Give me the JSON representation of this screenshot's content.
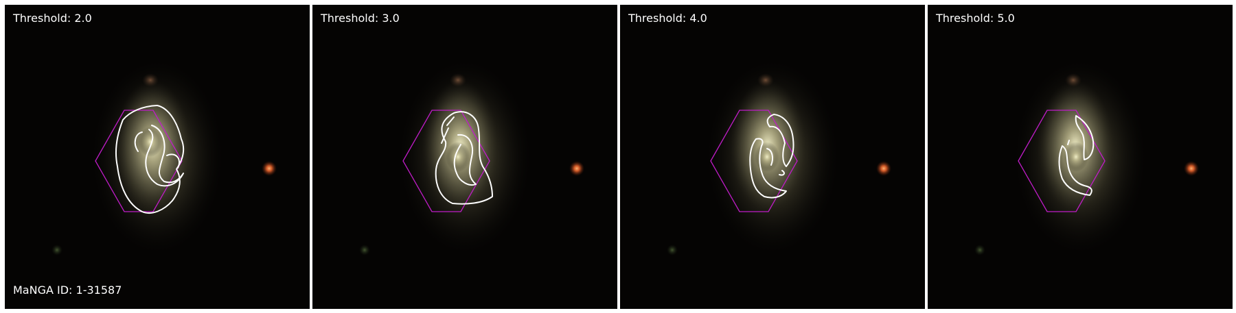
{
  "figure": {
    "galaxy_id_label": "MaNGA ID: 1-31587",
    "panels": [
      {
        "threshold_label": "Threshold: 2.0"
      },
      {
        "threshold_label": "Threshold: 3.0"
      },
      {
        "threshold_label": "Threshold: 4.0"
      },
      {
        "threshold_label": "Threshold: 5.0"
      }
    ],
    "colors": {
      "background": "#050403",
      "hexagon": "#c01cc8",
      "contour": "#ffffff",
      "star": "#e5622b",
      "galaxy_core": "#f1f0c8"
    }
  }
}
